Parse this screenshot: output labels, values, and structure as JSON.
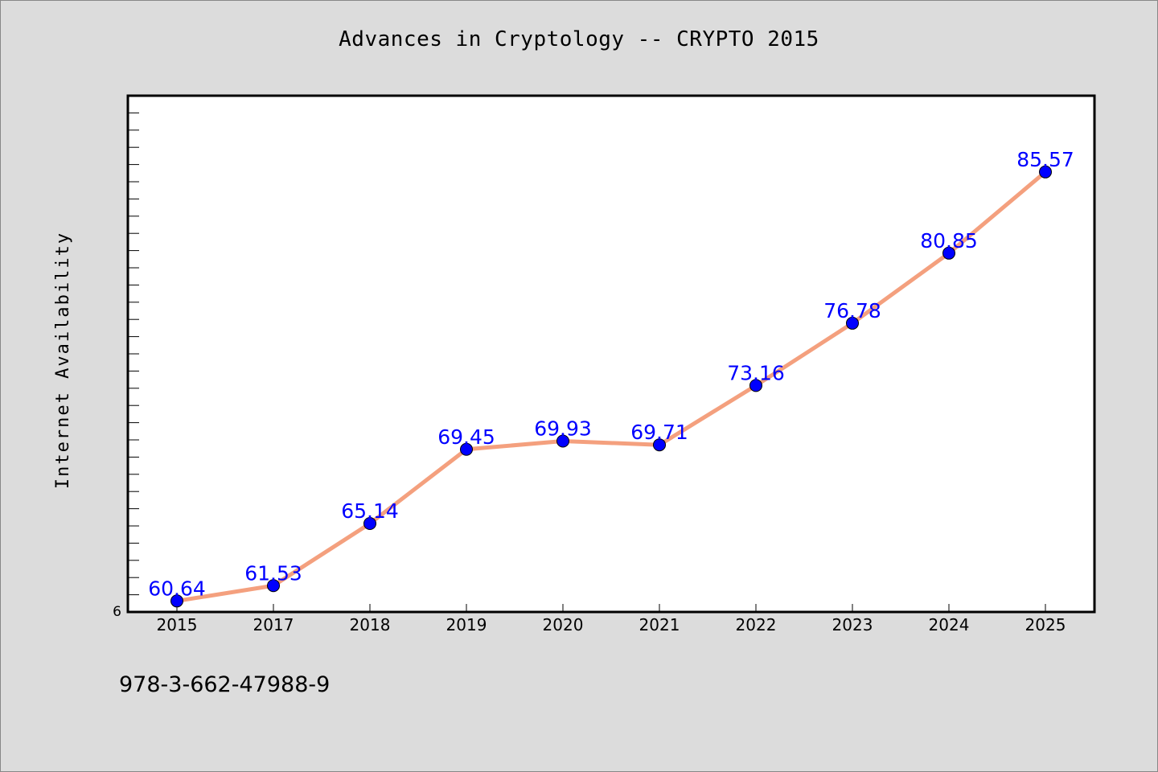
{
  "chart_data": {
    "type": "line",
    "title": "Advances in Cryptology -- CRYPTO 2015",
    "xlabel": "",
    "ylabel": "Internet Availability",
    "categories": [
      "2015",
      "2017",
      "2018",
      "2019",
      "2020",
      "2021",
      "2022",
      "2023",
      "2024",
      "2025"
    ],
    "series": [
      {
        "values": [
          60.64,
          61.53,
          65.14,
          69.45,
          69.93,
          69.71,
          73.16,
          76.78,
          80.85,
          85.57
        ],
        "data_labels": [
          "60.64",
          "61.53",
          "65.14",
          "69.45",
          "69.93",
          "69.71",
          "73.16",
          "76.78",
          "80.85",
          "85.57"
        ],
        "line_color": "#f4a07e",
        "marker_color": "#0000ff"
      }
    ],
    "y_tick_label": "6",
    "ylim": [
      60,
      90
    ],
    "grid": false,
    "legend": "none"
  },
  "footer": {
    "text": "978-3-662-47988-9"
  },
  "colors": {
    "background": "#dcdcdc",
    "plot_area": "#ffffff",
    "label_color": "#0000ff"
  }
}
